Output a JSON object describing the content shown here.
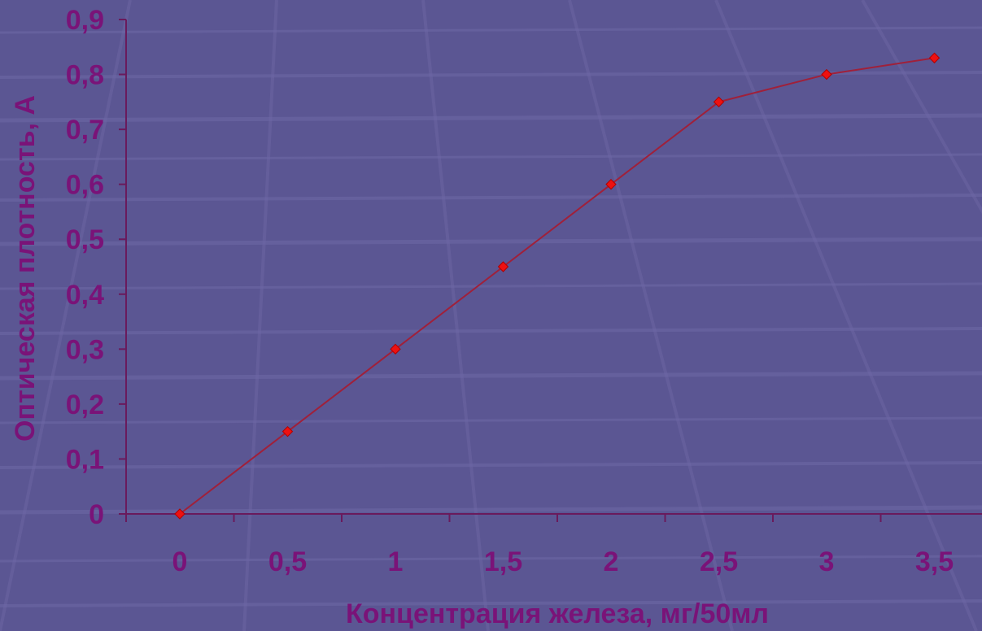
{
  "chart_data": {
    "type": "line",
    "title": "",
    "xlabel": "Концентрация железа, мг/50мл",
    "ylabel": "Оптическая плотность, А",
    "categories": [
      "0",
      "0,5",
      "1",
      "1,5",
      "2",
      "2,5",
      "3",
      "3,5"
    ],
    "x": [
      0,
      0.5,
      1,
      1.5,
      2,
      2.5,
      3,
      3.5
    ],
    "series": [
      {
        "values": [
          0,
          0.15,
          0.3,
          0.45,
          0.6,
          0.75,
          0.8,
          0.83
        ]
      }
    ],
    "y_ticks": [
      "0",
      "0,1",
      "0,2",
      "0,3",
      "0,4",
      "0,5",
      "0,6",
      "0,7",
      "0,8",
      "0,9"
    ],
    "ylim": [
      0,
      0.9
    ],
    "grid": false,
    "legend": "none",
    "colors": {
      "background": "#5b5693",
      "line": "#a0203a",
      "marker": "#ee1111",
      "axis": "#6a1a5c",
      "text": "#7a1378"
    }
  }
}
